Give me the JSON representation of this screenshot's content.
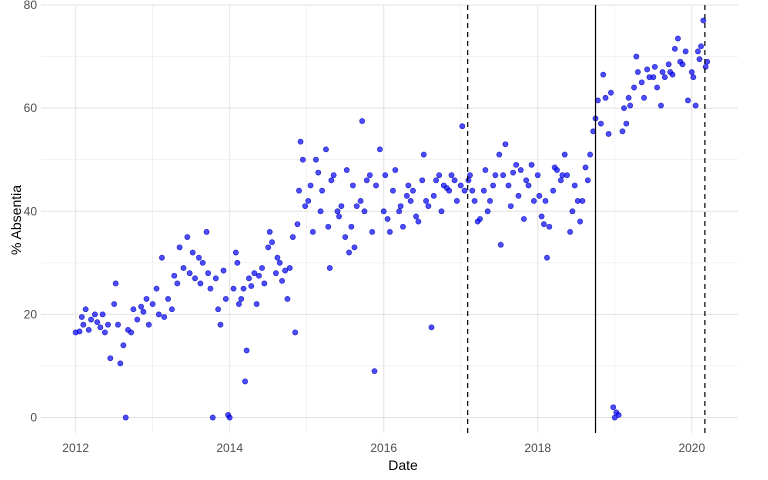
{
  "chart_data": {
    "type": "scatter",
    "xlabel": "Date",
    "ylabel": "% Absentia",
    "x_ticks": [
      "2012",
      "2014",
      "2016",
      "2018",
      "2020"
    ],
    "y_ticks": [
      "0",
      "20",
      "40",
      "60",
      "80"
    ],
    "xlim": [
      2011.55,
      2020.6
    ],
    "ylim": [
      -3,
      80
    ],
    "grid": true,
    "legend": "none",
    "point_color": "#0000ff",
    "vlines": [
      {
        "x": 2017.09,
        "style": "dashed"
      },
      {
        "x": 2018.75,
        "style": "solid"
      },
      {
        "x": 2020.17,
        "style": "dashed"
      }
    ],
    "points": [
      [
        2012.0,
        16.5
      ],
      [
        2012.05,
        16.7
      ],
      [
        2012.08,
        19.5
      ],
      [
        2012.1,
        18.0
      ],
      [
        2012.13,
        21.0
      ],
      [
        2012.17,
        17.0
      ],
      [
        2012.2,
        19.0
      ],
      [
        2012.25,
        20.0
      ],
      [
        2012.28,
        18.5
      ],
      [
        2012.32,
        17.5
      ],
      [
        2012.35,
        20.0
      ],
      [
        2012.38,
        16.5
      ],
      [
        2012.42,
        18.0
      ],
      [
        2012.45,
        11.5
      ],
      [
        2012.5,
        22.0
      ],
      [
        2012.52,
        26.0
      ],
      [
        2012.55,
        18.0
      ],
      [
        2012.58,
        10.5
      ],
      [
        2012.62,
        14.0
      ],
      [
        2012.65,
        0.0
      ],
      [
        2012.68,
        17.0
      ],
      [
        2012.72,
        16.5
      ],
      [
        2012.75,
        21.0
      ],
      [
        2012.8,
        19.0
      ],
      [
        2012.85,
        21.5
      ],
      [
        2012.88,
        20.5
      ],
      [
        2012.92,
        23.0
      ],
      [
        2012.95,
        18.0
      ],
      [
        2013.0,
        22.0
      ],
      [
        2013.05,
        25.0
      ],
      [
        2013.08,
        20.0
      ],
      [
        2013.12,
        31.0
      ],
      [
        2013.15,
        19.5
      ],
      [
        2013.2,
        23.0
      ],
      [
        2013.25,
        21.0
      ],
      [
        2013.28,
        27.5
      ],
      [
        2013.32,
        26.0
      ],
      [
        2013.35,
        33.0
      ],
      [
        2013.4,
        29.0
      ],
      [
        2013.45,
        35.0
      ],
      [
        2013.48,
        28.0
      ],
      [
        2013.52,
        32.0
      ],
      [
        2013.55,
        27.0
      ],
      [
        2013.6,
        31.0
      ],
      [
        2013.62,
        26.0
      ],
      [
        2013.65,
        30.0
      ],
      [
        2013.7,
        36.0
      ],
      [
        2013.72,
        28.0
      ],
      [
        2013.75,
        25.0
      ],
      [
        2013.78,
        0.0
      ],
      [
        2013.82,
        27.0
      ],
      [
        2013.85,
        21.0
      ],
      [
        2013.88,
        18.0
      ],
      [
        2013.92,
        28.5
      ],
      [
        2013.95,
        23.0
      ],
      [
        2013.98,
        0.5
      ],
      [
        2014.0,
        0.0
      ],
      [
        2014.05,
        25.0
      ],
      [
        2014.08,
        32.0
      ],
      [
        2014.1,
        30.0
      ],
      [
        2014.12,
        22.0
      ],
      [
        2014.15,
        23.0
      ],
      [
        2014.18,
        25.0
      ],
      [
        2014.2,
        7.0
      ],
      [
        2014.22,
        13.0
      ],
      [
        2014.25,
        27.0
      ],
      [
        2014.28,
        25.5
      ],
      [
        2014.32,
        28.0
      ],
      [
        2014.35,
        22.0
      ],
      [
        2014.38,
        27.5
      ],
      [
        2014.42,
        29.0
      ],
      [
        2014.45,
        26.0
      ],
      [
        2014.5,
        33.0
      ],
      [
        2014.52,
        36.0
      ],
      [
        2014.55,
        34.0
      ],
      [
        2014.6,
        28.0
      ],
      [
        2014.62,
        31.0
      ],
      [
        2014.65,
        30.0
      ],
      [
        2014.68,
        26.5
      ],
      [
        2014.72,
        28.5
      ],
      [
        2014.75,
        23.0
      ],
      [
        2014.78,
        29.0
      ],
      [
        2014.82,
        35.0
      ],
      [
        2014.85,
        16.5
      ],
      [
        2014.88,
        37.5
      ],
      [
        2014.9,
        44.0
      ],
      [
        2014.92,
        53.5
      ],
      [
        2014.95,
        50.0
      ],
      [
        2014.98,
        41.0
      ],
      [
        2015.02,
        42.0
      ],
      [
        2015.05,
        45.0
      ],
      [
        2015.08,
        36.0
      ],
      [
        2015.12,
        50.0
      ],
      [
        2015.15,
        47.5
      ],
      [
        2015.18,
        40.0
      ],
      [
        2015.2,
        44.0
      ],
      [
        2015.25,
        52.0
      ],
      [
        2015.28,
        37.0
      ],
      [
        2015.3,
        29.0
      ],
      [
        2015.32,
        46.0
      ],
      [
        2015.35,
        47.0
      ],
      [
        2015.4,
        40.0
      ],
      [
        2015.42,
        39.0
      ],
      [
        2015.45,
        41.0
      ],
      [
        2015.5,
        35.0
      ],
      [
        2015.52,
        48.0
      ],
      [
        2015.55,
        32.0
      ],
      [
        2015.58,
        37.0
      ],
      [
        2015.6,
        45.0
      ],
      [
        2015.62,
        33.0
      ],
      [
        2015.65,
        41.0
      ],
      [
        2015.7,
        42.0
      ],
      [
        2015.72,
        57.5
      ],
      [
        2015.75,
        40.0
      ],
      [
        2015.78,
        46.0
      ],
      [
        2015.82,
        47.0
      ],
      [
        2015.85,
        36.0
      ],
      [
        2015.88,
        9.0
      ],
      [
        2015.9,
        45.0
      ],
      [
        2015.95,
        52.0
      ],
      [
        2016.0,
        40.0
      ],
      [
        2016.02,
        47.0
      ],
      [
        2016.05,
        38.5
      ],
      [
        2016.08,
        36.0
      ],
      [
        2016.12,
        44.0
      ],
      [
        2016.15,
        48.0
      ],
      [
        2016.2,
        40.0
      ],
      [
        2016.22,
        41.0
      ],
      [
        2016.25,
        37.0
      ],
      [
        2016.3,
        43.0
      ],
      [
        2016.32,
        45.0
      ],
      [
        2016.35,
        42.0
      ],
      [
        2016.38,
        44.0
      ],
      [
        2016.42,
        39.0
      ],
      [
        2016.45,
        38.0
      ],
      [
        2016.5,
        46.0
      ],
      [
        2016.52,
        51.0
      ],
      [
        2016.55,
        42.0
      ],
      [
        2016.58,
        41.0
      ],
      [
        2016.62,
        17.5
      ],
      [
        2016.65,
        43.0
      ],
      [
        2016.68,
        46.0
      ],
      [
        2016.72,
        47.0
      ],
      [
        2016.75,
        40.0
      ],
      [
        2016.78,
        45.0
      ],
      [
        2016.82,
        44.5
      ],
      [
        2016.85,
        44.0
      ],
      [
        2016.88,
        47.0
      ],
      [
        2016.92,
        46.0
      ],
      [
        2016.95,
        42.0
      ],
      [
        2017.0,
        45.0
      ],
      [
        2017.02,
        56.5
      ],
      [
        2017.05,
        44.0
      ],
      [
        2017.1,
        46.0
      ],
      [
        2017.12,
        47.0
      ],
      [
        2017.15,
        44.0
      ],
      [
        2017.18,
        42.0
      ],
      [
        2017.22,
        38.0
      ],
      [
        2017.25,
        38.5
      ],
      [
        2017.3,
        44.0
      ],
      [
        2017.32,
        48.0
      ],
      [
        2017.35,
        40.0
      ],
      [
        2017.38,
        42.0
      ],
      [
        2017.42,
        45.0
      ],
      [
        2017.45,
        47.0
      ],
      [
        2017.5,
        51.0
      ],
      [
        2017.52,
        33.5
      ],
      [
        2017.55,
        47.0
      ],
      [
        2017.58,
        53.0
      ],
      [
        2017.62,
        45.0
      ],
      [
        2017.65,
        41.0
      ],
      [
        2017.68,
        47.5
      ],
      [
        2017.72,
        49.0
      ],
      [
        2017.75,
        43.0
      ],
      [
        2017.78,
        48.0
      ],
      [
        2017.82,
        38.5
      ],
      [
        2017.85,
        46.0
      ],
      [
        2017.88,
        45.0
      ],
      [
        2017.92,
        49.0
      ],
      [
        2017.95,
        42.0
      ],
      [
        2018.0,
        47.0
      ],
      [
        2018.02,
        43.0
      ],
      [
        2018.05,
        39.0
      ],
      [
        2018.08,
        37.5
      ],
      [
        2018.1,
        42.0
      ],
      [
        2018.12,
        31.0
      ],
      [
        2018.15,
        37.0
      ],
      [
        2018.2,
        44.0
      ],
      [
        2018.22,
        48.5
      ],
      [
        2018.25,
        48.0
      ],
      [
        2018.3,
        46.0
      ],
      [
        2018.32,
        47.0
      ],
      [
        2018.35,
        51.0
      ],
      [
        2018.38,
        47.0
      ],
      [
        2018.42,
        36.0
      ],
      [
        2018.45,
        40.0
      ],
      [
        2018.48,
        45.0
      ],
      [
        2018.52,
        42.0
      ],
      [
        2018.55,
        38.0
      ],
      [
        2018.58,
        42.0
      ],
      [
        2018.62,
        48.5
      ],
      [
        2018.65,
        46.0
      ],
      [
        2018.68,
        51.0
      ],
      [
        2018.72,
        55.5
      ],
      [
        2018.75,
        58.0
      ],
      [
        2018.78,
        61.5
      ],
      [
        2018.82,
        57.0
      ],
      [
        2018.85,
        66.5
      ],
      [
        2018.88,
        62.0
      ],
      [
        2018.92,
        55.0
      ],
      [
        2018.95,
        63.0
      ],
      [
        2018.98,
        2.0
      ],
      [
        2019.0,
        0.0
      ],
      [
        2019.02,
        1.0
      ],
      [
        2019.05,
        0.5
      ],
      [
        2019.1,
        55.5
      ],
      [
        2019.12,
        60.0
      ],
      [
        2019.15,
        57.0
      ],
      [
        2019.18,
        62.0
      ],
      [
        2019.2,
        60.5
      ],
      [
        2019.25,
        64.0
      ],
      [
        2019.28,
        70.0
      ],
      [
        2019.3,
        67.0
      ],
      [
        2019.35,
        65.0
      ],
      [
        2019.38,
        62.0
      ],
      [
        2019.42,
        67.5
      ],
      [
        2019.45,
        66.0
      ],
      [
        2019.5,
        66.0
      ],
      [
        2019.52,
        68.0
      ],
      [
        2019.55,
        64.0
      ],
      [
        2019.6,
        60.5
      ],
      [
        2019.62,
        67.0
      ],
      [
        2019.65,
        66.0
      ],
      [
        2019.7,
        68.5
      ],
      [
        2019.72,
        67.0
      ],
      [
        2019.75,
        66.5
      ],
      [
        2019.78,
        71.5
      ],
      [
        2019.82,
        73.5
      ],
      [
        2019.85,
        69.0
      ],
      [
        2019.88,
        68.5
      ],
      [
        2019.92,
        71.0
      ],
      [
        2019.95,
        61.5
      ],
      [
        2020.0,
        67.0
      ],
      [
        2020.02,
        66.0
      ],
      [
        2020.05,
        60.5
      ],
      [
        2020.08,
        71.0
      ],
      [
        2020.1,
        69.5
      ],
      [
        2020.12,
        72.0
      ],
      [
        2020.15,
        77.0
      ],
      [
        2020.18,
        68.0
      ],
      [
        2020.2,
        69.0
      ]
    ]
  }
}
